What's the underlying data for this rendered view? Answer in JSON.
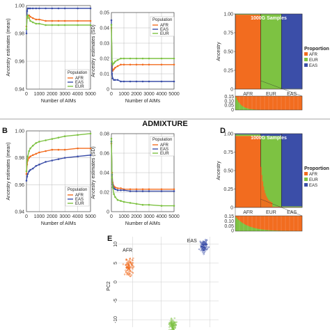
{
  "section_title": "ADMIXTURE",
  "colors": {
    "AFR": "#f26c1f",
    "EAS": "#3b4ea8",
    "EUR": "#7dc242",
    "grid": "#222222"
  },
  "panels": {
    "A_mean": {
      "letter": "",
      "ylabel": "Ancestry estimates (mean)",
      "xlabel": "Number of AIMs",
      "legend_title": "Population",
      "legend": [
        "AFR",
        "EAS",
        "EUR"
      ]
    },
    "A_sd": {
      "letter": "",
      "ylabel": "Ancestry estimates (SD)",
      "xlabel": "Number of AIMs",
      "legend_title": "Population",
      "legend": [
        "AFR",
        "EAS",
        "EUR"
      ]
    },
    "B_mean": {
      "letter": "B",
      "ylabel": "Ancestry estimates (mean)",
      "xlabel": "Number of AIMs",
      "legend_title": "Population",
      "legend": [
        "AFR",
        "EAS",
        "EUR"
      ]
    },
    "B_sd": {
      "letter": "",
      "ylabel": "Ancestry estimates (SD)",
      "xlabel": "Number of AIMs",
      "legend_title": "Population",
      "legend": [
        "AFR",
        "EAS",
        "EUR"
      ]
    },
    "C_struct": {
      "letter": "",
      "title": "1000G Samples",
      "ylabel": "Ancestry",
      "groups": [
        "AFR",
        "EUR",
        "EAS"
      ],
      "legend_title": "Proportion",
      "legend": [
        "AFR",
        "EUR",
        "EAS"
      ]
    },
    "D_struct": {
      "letter": "D",
      "title": "1000G Samples",
      "ylabel": "Ancestry",
      "groups": [
        "AFR",
        "EUR",
        "EAS"
      ],
      "legend_title": "Proportion",
      "legend": [
        "AFR",
        "EUR",
        "EAS"
      ]
    },
    "E_pca": {
      "letter": "E",
      "ylabel": "PC2",
      "labels": [
        "AFR",
        "EAS"
      ]
    }
  },
  "chart_data": [
    {
      "type": "line",
      "panel": "A_mean",
      "x": [
        0,
        50,
        100,
        200,
        300,
        500,
        750,
        1000,
        1500,
        2000,
        2500,
        3000,
        4000,
        5000
      ],
      "xlim": [
        0,
        5000
      ],
      "ylim": [
        0.94,
        1.0
      ],
      "xticks": [
        0,
        1000,
        2000,
        3000,
        4000,
        5000
      ],
      "yticks": [
        0.94,
        0.96,
        0.98,
        1.0
      ],
      "ytick_labels": [
        "0.94",
        "0.96",
        "0.98",
        "1.00"
      ],
      "xlabel": "Number of AIMs",
      "ylabel": "Ancestry estimates (mean)",
      "series": [
        {
          "name": "AFR",
          "values": [
            0.985,
            0.991,
            0.993,
            0.993,
            0.992,
            0.991,
            0.99,
            0.99,
            0.989,
            0.989,
            0.989,
            0.989,
            0.989,
            0.989
          ]
        },
        {
          "name": "EAS",
          "values": [
            0.98,
            0.996,
            0.998,
            0.998,
            0.998,
            0.998,
            0.998,
            0.998,
            0.998,
            0.998,
            0.998,
            0.998,
            0.998,
            0.998
          ]
        },
        {
          "name": "EUR",
          "values": [
            0.983,
            0.992,
            0.993,
            0.991,
            0.989,
            0.988,
            0.987,
            0.987,
            0.986,
            0.986,
            0.986,
            0.986,
            0.986,
            0.986
          ]
        }
      ]
    },
    {
      "type": "line",
      "panel": "A_sd",
      "x": [
        0,
        50,
        100,
        200,
        300,
        500,
        750,
        1000,
        1500,
        2000,
        2500,
        3000,
        4000,
        5000
      ],
      "xlim": [
        0,
        5000
      ],
      "ylim": [
        0.0,
        0.05
      ],
      "xticks": [
        0,
        1000,
        2000,
        3000,
        4000,
        5000
      ],
      "yticks": [
        0.0,
        0.01,
        0.02,
        0.03,
        0.04,
        0.05
      ],
      "ytick_labels": [
        "0",
        "0.01",
        "0.02",
        "0.03",
        "0.04",
        "0.05"
      ],
      "xlabel": "Number of AIMs",
      "ylabel": "Ancestry estimates (SD)",
      "series": [
        {
          "name": "AFR",
          "values": [
            0.04,
            0.015,
            0.012,
            0.013,
            0.014,
            0.015,
            0.016,
            0.016,
            0.016,
            0.016,
            0.016,
            0.016,
            0.016,
            0.016
          ]
        },
        {
          "name": "EAS",
          "values": [
            0.045,
            0.01,
            0.007,
            0.006,
            0.006,
            0.006,
            0.005,
            0.005,
            0.005,
            0.005,
            0.005,
            0.005,
            0.005,
            0.005
          ]
        },
        {
          "name": "EUR",
          "values": [
            0.042,
            0.018,
            0.016,
            0.017,
            0.018,
            0.019,
            0.02,
            0.02,
            0.02,
            0.02,
            0.02,
            0.02,
            0.02,
            0.02
          ]
        }
      ]
    },
    {
      "type": "line",
      "panel": "B_mean",
      "x": [
        0,
        50,
        100,
        200,
        300,
        500,
        750,
        1000,
        1500,
        2000,
        2500,
        3000,
        4000,
        5000
      ],
      "xlim": [
        0,
        5000
      ],
      "ylim": [
        0.94,
        1.0
      ],
      "xticks": [
        0,
        1000,
        2000,
        3000,
        4000,
        5000
      ],
      "yticks": [
        0.94,
        0.96,
        0.98,
        1.0
      ],
      "ytick_labels": [
        "0.94",
        "0.96",
        "0.98",
        "1.00"
      ],
      "xlabel": "Number of AIMs",
      "ylabel": "Ancestry estimates (mean)",
      "series": [
        {
          "name": "AFR",
          "values": [
            0.968,
            0.975,
            0.978,
            0.98,
            0.981,
            0.982,
            0.983,
            0.984,
            0.985,
            0.986,
            0.986,
            0.986,
            0.987,
            0.987
          ]
        },
        {
          "name": "EAS",
          "values": [
            0.963,
            0.966,
            0.968,
            0.97,
            0.971,
            0.972,
            0.974,
            0.975,
            0.977,
            0.978,
            0.979,
            0.98,
            0.981,
            0.982
          ]
        },
        {
          "name": "EUR",
          "values": [
            0.97,
            0.978,
            0.981,
            0.985,
            0.987,
            0.989,
            0.991,
            0.992,
            0.993,
            0.994,
            0.995,
            0.996,
            0.997,
            0.998
          ]
        }
      ]
    },
    {
      "type": "line",
      "panel": "B_sd",
      "x": [
        0,
        50,
        100,
        200,
        300,
        500,
        750,
        1000,
        1500,
        2000,
        2500,
        3000,
        4000,
        5000
      ],
      "xlim": [
        0,
        5000
      ],
      "ylim": [
        0.0,
        0.08
      ],
      "xticks": [
        0,
        1000,
        2000,
        3000,
        4000,
        5000
      ],
      "yticks": [
        0.0,
        0.02,
        0.04,
        0.06,
        0.08
      ],
      "ytick_labels": [
        "0",
        "0.02",
        "0.04",
        "0.06",
        "0.08"
      ],
      "xlabel": "Number of AIMs",
      "ylabel": "Ancestry estimates (SD)",
      "series": [
        {
          "name": "AFR",
          "values": [
            0.07,
            0.04,
            0.03,
            0.026,
            0.025,
            0.024,
            0.024,
            0.023,
            0.023,
            0.023,
            0.023,
            0.023,
            0.023,
            0.023
          ]
        },
        {
          "name": "EAS",
          "values": [
            0.072,
            0.038,
            0.028,
            0.024,
            0.023,
            0.022,
            0.022,
            0.022,
            0.021,
            0.021,
            0.021,
            0.021,
            0.021,
            0.021
          ]
        },
        {
          "name": "EUR",
          "values": [
            0.075,
            0.035,
            0.025,
            0.018,
            0.015,
            0.012,
            0.011,
            0.01,
            0.009,
            0.008,
            0.007,
            0.007,
            0.006,
            0.006
          ]
        }
      ]
    },
    {
      "type": "bar",
      "panel": "C_struct",
      "stacked": true,
      "title": "1000G Samples",
      "ylabel": "Ancestry",
      "ylim": [
        0,
        1
      ],
      "yticks": [
        0,
        0.25,
        0.5,
        0.75,
        1.0
      ],
      "ytick_labels": [
        "0",
        "0.25",
        "0.50",
        "0.75",
        "1.00"
      ],
      "categories": [
        "AFR",
        "EUR",
        "EAS"
      ],
      "group_fraction": [
        0.38,
        0.31,
        0.31
      ],
      "series": [
        {
          "name": "AFR",
          "values": [
            0.99,
            0.003,
            0.002
          ]
        },
        {
          "name": "EUR",
          "values": [
            0.008,
            0.995,
            0.003
          ]
        },
        {
          "name": "EAS",
          "values": [
            0.002,
            0.002,
            0.995
          ]
        }
      ],
      "inset_yticks": [
        "0.15",
        "0.10",
        "0.05",
        "0"
      ]
    },
    {
      "type": "bar",
      "panel": "D_struct",
      "stacked": true,
      "title": "1000G Samples",
      "ylabel": "Ancestry",
      "ylim": [
        0,
        1
      ],
      "yticks": [
        0,
        0.25,
        0.5,
        0.75,
        1.0
      ],
      "ytick_labels": [
        "0",
        "0.25",
        "0.50",
        "0.75",
        "1.00"
      ],
      "categories": [
        "AFR",
        "EUR",
        "EAS"
      ],
      "group_fraction": [
        0.38,
        0.31,
        0.31
      ],
      "series": [
        {
          "name": "AFR",
          "values": [
            0.97,
            0.01,
            0.005
          ]
        },
        {
          "name": "EUR",
          "values": [
            0.02,
            0.96,
            0.01
          ]
        },
        {
          "name": "EAS",
          "values": [
            0.01,
            0.03,
            0.985
          ]
        }
      ],
      "inset_yticks": [
        "0.15",
        "0.10",
        "0.05",
        "0"
      ]
    },
    {
      "type": "scatter",
      "panel": "E_pca",
      "ylabel": "PC2",
      "xlim": [
        -20,
        15
      ],
      "ylim": [
        -12,
        12
      ],
      "yticks": [
        10,
        5,
        0,
        -5,
        -10
      ],
      "ytick_labels": [
        "10",
        "5",
        "0",
        "-5",
        "-10"
      ],
      "clusters": [
        {
          "name": "AFR",
          "center": [
            -16,
            4
          ],
          "spread": [
            1.0,
            1.4
          ]
        },
        {
          "name": "EAS",
          "center": [
            10,
            9.5
          ],
          "spread": [
            0.8,
            0.9
          ]
        },
        {
          "name": "EUR",
          "center": [
            -1,
            -11.5
          ],
          "spread": [
            0.8,
            1.0
          ]
        }
      ]
    }
  ]
}
